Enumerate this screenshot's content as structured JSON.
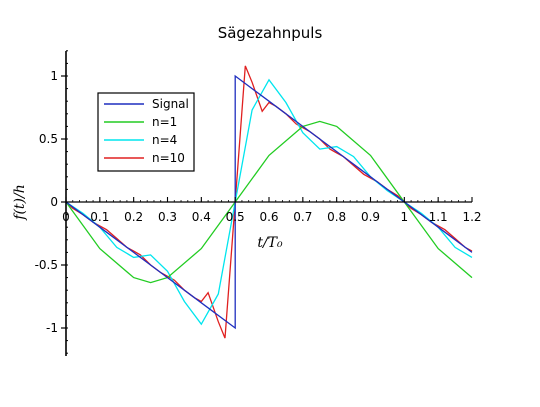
{
  "chart_data": {
    "type": "line",
    "title": "Sägezahnpuls",
    "xlabel": "t/T₀",
    "ylabel": "f(t)/h",
    "xlim": [
      0,
      1.2
    ],
    "ylim": [
      -1.2,
      1.2
    ],
    "x_ticks": [
      "0",
      "0.1",
      "0.2",
      "0.3",
      "0.4",
      "0.5",
      "0.6",
      "0.7",
      "0.8",
      "0.9",
      "1",
      "1.1",
      "1.2"
    ],
    "y_ticks": [
      "1",
      "0.5",
      "0",
      "-0.5",
      "-1"
    ],
    "grid": false,
    "legend_position": "top-left",
    "series": [
      {
        "name": "Signal",
        "color": "#1f2fbf",
        "x": [
          0,
          0.1,
          0.2,
          0.3,
          0.4,
          0.5,
          0.5,
          0.6,
          0.7,
          0.8,
          0.9,
          1.0,
          1.1,
          1.2
        ],
        "y": [
          0,
          -0.2,
          -0.4,
          -0.6,
          -0.8,
          -1,
          1,
          0.8,
          0.6,
          0.4,
          0.2,
          0,
          -0.2,
          -0.4
        ]
      },
      {
        "name": "n=1",
        "color": "#22cc22",
        "x": [
          0,
          0.1,
          0.2,
          0.25,
          0.3,
          0.4,
          0.5,
          0.6,
          0.7,
          0.75,
          0.8,
          0.9,
          1.0,
          1.1,
          1.2
        ],
        "y": [
          0,
          -0.37,
          -0.6,
          -0.64,
          -0.6,
          -0.37,
          0,
          0.37,
          0.6,
          0.64,
          0.6,
          0.37,
          0,
          -0.37,
          -0.6
        ]
      },
      {
        "name": "n=4",
        "color": "#00e5ee",
        "x": [
          0,
          0.05,
          0.1,
          0.15,
          0.2,
          0.25,
          0.3,
          0.35,
          0.4,
          0.45,
          0.5,
          0.55,
          0.6,
          0.65,
          0.7,
          0.75,
          0.8,
          0.85,
          0.9,
          0.95,
          1.0,
          1.05,
          1.1,
          1.15,
          1.2
        ],
        "y": [
          0,
          -0.09,
          -0.2,
          -0.36,
          -0.44,
          -0.42,
          -0.55,
          -0.79,
          -0.97,
          -0.73,
          0,
          0.73,
          0.97,
          0.79,
          0.55,
          0.42,
          0.44,
          0.36,
          0.2,
          0.09,
          0,
          -0.09,
          -0.2,
          -0.36,
          -0.44
        ]
      },
      {
        "name": "n=10",
        "color": "#e02020",
        "x": [
          0,
          0.02,
          0.05,
          0.08,
          0.1,
          0.12,
          0.15,
          0.18,
          0.2,
          0.22,
          0.25,
          0.28,
          0.3,
          0.32,
          0.35,
          0.38,
          0.4,
          0.42,
          0.45,
          0.47,
          0.5,
          0.53,
          0.55,
          0.58,
          0.6,
          0.62,
          0.65,
          0.68,
          0.7,
          0.72,
          0.75,
          0.78,
          0.8,
          0.82,
          0.85,
          0.88,
          0.9,
          0.92,
          0.95,
          0.98,
          1.0,
          1.02,
          1.05,
          1.08,
          1.1,
          1.12,
          1.15,
          1.18,
          1.2
        ],
        "y": [
          0,
          -0.05,
          -0.1,
          -0.16,
          -0.19,
          -0.22,
          -0.29,
          -0.36,
          -0.39,
          -0.42,
          -0.5,
          -0.56,
          -0.59,
          -0.62,
          -0.7,
          -0.76,
          -0.79,
          -0.72,
          -0.95,
          -1.08,
          0,
          1.08,
          0.95,
          0.72,
          0.79,
          0.76,
          0.7,
          0.62,
          0.59,
          0.56,
          0.5,
          0.42,
          0.39,
          0.36,
          0.29,
          0.22,
          0.19,
          0.16,
          0.1,
          0.05,
          0,
          -0.05,
          -0.1,
          -0.16,
          -0.19,
          -0.22,
          -0.29,
          -0.36,
          -0.39
        ]
      }
    ]
  }
}
